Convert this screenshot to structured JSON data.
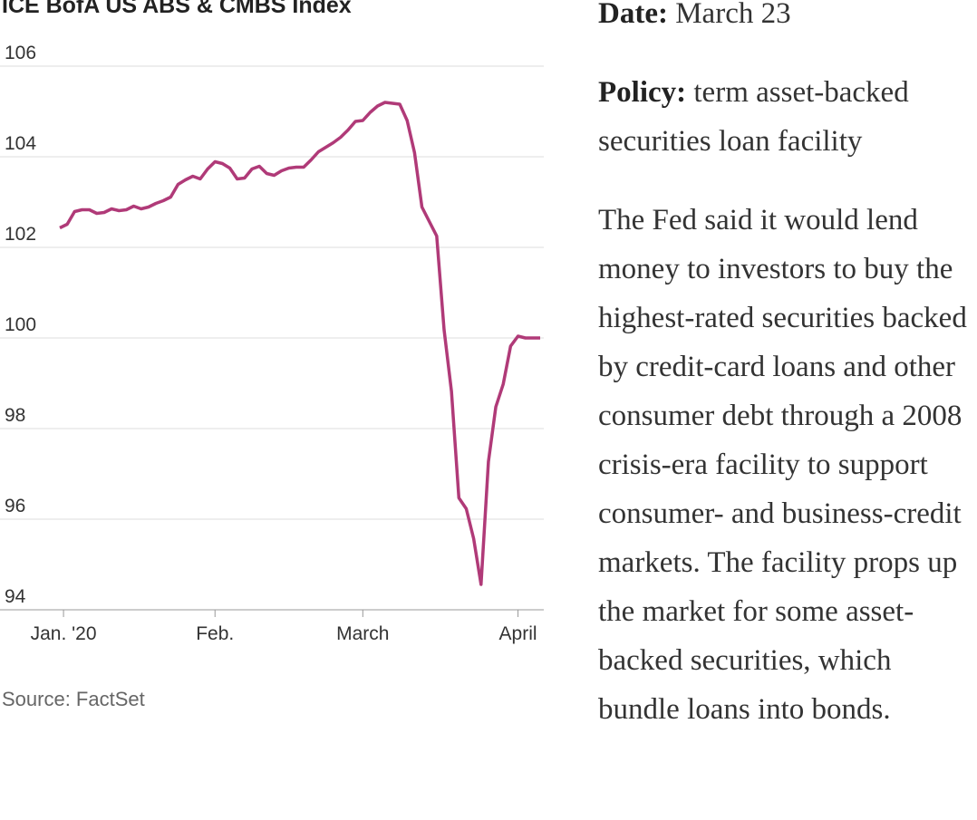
{
  "chart_data": {
    "type": "line",
    "title": "ICE BofA US ABS & CMBS Index",
    "source": "Source: FactSet",
    "color": "#b03a78",
    "grid": true,
    "values": [
      102.43,
      102.51,
      102.79,
      102.83,
      102.83,
      102.75,
      102.77,
      102.85,
      102.81,
      102.83,
      102.91,
      102.85,
      102.89,
      102.97,
      103.03,
      103.11,
      103.39,
      103.49,
      103.57,
      103.51,
      103.73,
      103.89,
      103.85,
      103.75,
      103.51,
      103.53,
      103.73,
      103.79,
      103.63,
      103.59,
      103.69,
      103.75,
      103.77,
      103.77,
      103.93,
      104.11,
      104.21,
      104.31,
      104.43,
      104.59,
      104.78,
      104.8,
      104.98,
      105.12,
      105.2,
      105.18,
      105.16,
      104.8,
      104.09,
      102.89,
      102.57,
      102.25,
      100.18,
      98.82,
      96.47,
      96.23,
      95.57,
      94.56,
      97.27,
      98.48,
      98.98,
      99.82,
      100.04,
      100.0,
      100.0,
      100.0
    ],
    "xlim": [
      0,
      65
    ],
    "xticks": [
      {
        "value": 0.5,
        "label": "Jan. '20"
      },
      {
        "value": 21,
        "label": "Feb."
      },
      {
        "value": 41,
        "label": "March"
      },
      {
        "value": 62,
        "label": "April"
      }
    ],
    "ylim": [
      94,
      106
    ],
    "yticks": [
      94,
      96,
      98,
      100,
      102,
      104,
      106
    ]
  },
  "text": {
    "date_label": "Date:",
    "date": "March 23",
    "policy_label": "Policy:",
    "policy": "term asset-backed securities loan facility",
    "body": "The Fed said it would lend money to investors to buy the highest-rated securities backed by credit-card loans and other consumer debt through a 2008 crisis-era facility to support consumer- and business-credit markets. The facility props up the market for some asset-backed securities, which bundle loans into bonds."
  }
}
